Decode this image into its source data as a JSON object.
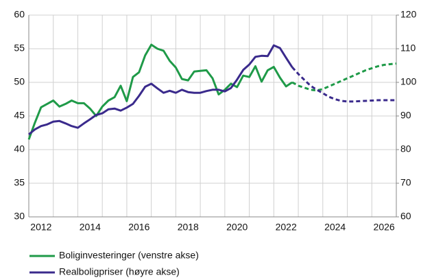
{
  "chart_data": {
    "type": "line",
    "x": [
      2012,
      2012.25,
      2012.5,
      2012.75,
      2013,
      2013.25,
      2013.5,
      2013.75,
      2014,
      2014.25,
      2014.5,
      2014.75,
      2015,
      2015.25,
      2015.5,
      2015.75,
      2016,
      2016.25,
      2016.5,
      2016.75,
      2017,
      2017.25,
      2017.5,
      2017.75,
      2018,
      2018.25,
      2018.5,
      2018.75,
      2019,
      2019.25,
      2019.5,
      2019.75,
      2020,
      2020.25,
      2020.5,
      2020.75,
      2021,
      2021.25,
      2021.5,
      2021.75,
      2022,
      2022.25,
      2022.5,
      2022.75,
      2023,
      2023.25,
      2023.5,
      2023.75,
      2024,
      2024.25,
      2024.5,
      2024.75,
      2025,
      2025.25,
      2025.5,
      2025.75,
      2026,
      2026.25,
      2026.5,
      2026.75,
      2027
    ],
    "series": [
      {
        "name": "Boliginvesteringer (venstre akse)",
        "color": "#1f9a48",
        "axis": "y",
        "values": [
          41.5,
          44,
          46.3,
          46.8,
          47.3,
          46.4,
          46.8,
          47.3,
          46.9,
          46.9,
          46.1,
          45.0,
          46.4,
          47.3,
          47.8,
          49.5,
          47.2,
          50.8,
          51.5,
          54.0,
          55.6,
          55.0,
          54.7,
          53.2,
          52.2,
          50.5,
          50.3,
          51.6,
          51.7,
          51.8,
          50.6,
          48.2,
          48.9,
          49.8,
          49.3,
          51.0,
          50.8,
          52.4,
          50.1,
          51.8,
          52.3,
          50.7,
          49.4,
          50.0,
          49.5,
          49.2,
          48.9,
          48.8,
          49.0,
          49.4,
          49.8,
          50.2,
          50.6,
          51.0,
          51.4,
          51.8,
          52.1,
          52.4,
          52.6,
          52.7,
          52.8
        ]
      },
      {
        "name": "Realboligpriser (høyre akse)",
        "color": "#3a2a8c",
        "axis": "y2",
        "values": [
          84.5,
          86,
          87,
          87.5,
          88.3,
          88.5,
          87.8,
          87,
          86.5,
          87.8,
          89,
          90.3,
          90.8,
          92,
          92.2,
          91.6,
          92.5,
          93.6,
          96,
          98.7,
          99.6,
          98.2,
          96.9,
          97.5,
          96.9,
          97.8,
          97.1,
          96.9,
          96.9,
          97.4,
          97.8,
          97.8,
          97.3,
          98.3,
          100.8,
          103.7,
          105.3,
          107.6,
          107.9,
          107.8,
          111,
          110.2,
          107.3,
          104.5,
          102.5,
          100.7,
          99,
          97.8,
          96.8,
          95.7,
          95,
          94.5,
          94.3,
          94.3,
          94.4,
          94.5,
          94.6,
          94.7,
          94.7,
          94.7,
          94.7
        ]
      }
    ],
    "dashed_from_x": 2022.75,
    "xlim": [
      2012,
      2027
    ],
    "xgrid": [
      2012,
      2013,
      2014,
      2015,
      2016,
      2017,
      2018,
      2019,
      2020,
      2021,
      2022,
      2023,
      2024,
      2025,
      2026,
      2027
    ],
    "xticks": [
      {
        "value": 2012.5,
        "label": "2012"
      },
      {
        "value": 2014.5,
        "label": "2014"
      },
      {
        "value": 2016.5,
        "label": "2016"
      },
      {
        "value": 2018.5,
        "label": "2018"
      },
      {
        "value": 2020.5,
        "label": "2020"
      },
      {
        "value": 2022.5,
        "label": "2022"
      },
      {
        "value": 2024.5,
        "label": "2024"
      },
      {
        "value": 2026.5,
        "label": "2026"
      }
    ],
    "ylim": [
      30,
      60
    ],
    "yticks": [
      30,
      35,
      40,
      45,
      50,
      55,
      60
    ],
    "y2lim": [
      60,
      120
    ],
    "y2ticks": [
      60,
      70,
      80,
      90,
      100,
      110,
      120
    ],
    "grid": true,
    "legend": "bottom"
  }
}
